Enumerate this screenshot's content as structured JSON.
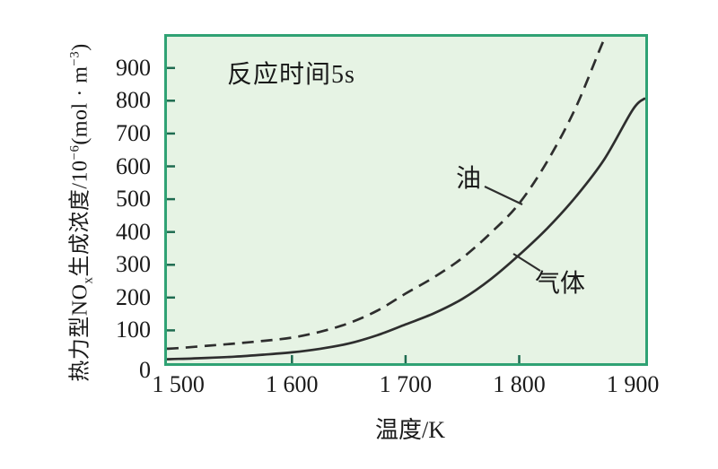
{
  "colors": {
    "page_bg": "#ffffff",
    "plot_bg": "#e6f3e4",
    "plot_border": "#2fa274",
    "curve": "#2e2e2e",
    "tick": "#1e6b50",
    "text": "#1a1a1a"
  },
  "chart_data": {
    "type": "line",
    "title": "",
    "annotation": "反应时间5s",
    "xlabel": "温度/K",
    "ylabel": "热力型NOx生成浓度/10−6(mol·m−3)",
    "ylabel_parts": {
      "p1": "热力型NO",
      "sub1": "x",
      "p2": "生成浓度/10",
      "sup1": "−6",
      "p3": "(mol · m",
      "sup2": "−3",
      "p4": ")"
    },
    "x_domain": [
      1490,
      1911
    ],
    "y_domain": [
      0,
      995
    ],
    "x_tick_values": [
      1500,
      1600,
      1700,
      1800,
      1900
    ],
    "x_tick_labels": [
      "1 500",
      "1 600",
      "1 700",
      "1 800",
      "1 900"
    ],
    "x_ticks_marked": [
      1600,
      1700,
      1800
    ],
    "y_tick_values": [
      0,
      100,
      200,
      300,
      400,
      500,
      600,
      700,
      800,
      900
    ],
    "y_tick_labels": [
      "0",
      "100",
      "200",
      "300",
      "400",
      "500",
      "600",
      "700",
      "800",
      "900"
    ],
    "y_ticks_marked": [
      100,
      200,
      300,
      400,
      500,
      600,
      700,
      800,
      900
    ],
    "grid": false,
    "legend": "inline-curve-labels",
    "series": [
      {
        "id": "oil",
        "name": "油",
        "line_style": "dashed",
        "x": [
          1490,
          1500,
          1525,
          1550,
          1575,
          1600,
          1625,
          1650,
          1675,
          1700,
          1725,
          1750,
          1775,
          1800,
          1825,
          1850,
          1875,
          1882
        ],
        "values": [
          44,
          46,
          53,
          60,
          68,
          78,
          96,
          122,
          160,
          212,
          262,
          321,
          397,
          487,
          617,
          781,
          989,
          1020
        ]
      },
      {
        "id": "gas",
        "name": "气体",
        "line_style": "solid",
        "x": [
          1490,
          1500,
          1525,
          1550,
          1575,
          1600,
          1625,
          1650,
          1675,
          1700,
          1725,
          1750,
          1775,
          1800,
          1825,
          1850,
          1875,
          1900,
          1911
        ],
        "values": [
          12,
          13,
          16,
          20,
          26,
          33,
          44,
          60,
          85,
          118,
          152,
          196,
          256,
          330,
          412,
          508,
          622,
          773,
          808
        ]
      }
    ]
  }
}
